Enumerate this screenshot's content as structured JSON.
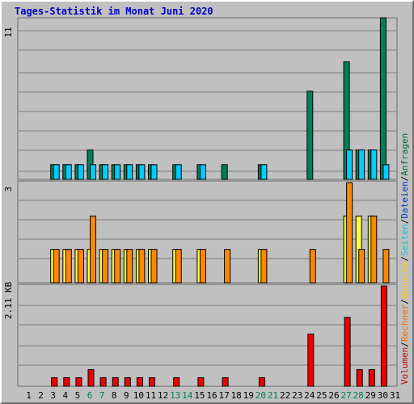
{
  "title": "Tages-Statistik im Monat Juni 2020",
  "legend": {
    "items": [
      {
        "label": "Anfragen",
        "color": "#006633"
      },
      {
        "label": "Dateien",
        "color": "#0033cc"
      },
      {
        "label": "Seiten",
        "color": "#00cccc"
      },
      {
        "label": "Besuche",
        "color": "#ffcc00"
      },
      {
        "label": "Rechner",
        "color": "#ff6600"
      },
      {
        "label": "Volumen",
        "color": "#cc0000"
      }
    ],
    "separator": "/"
  },
  "colors": {
    "hits": "#00805a",
    "files": "#00ccff",
    "visits": "#ffff33",
    "sites": "#ff8800",
    "kbytes": "#ee0000",
    "weekend_label": "#00805a",
    "background": "#c0c0c0",
    "grid": "#808080"
  },
  "chart_data": [
    {
      "type": "bar",
      "title": "Tages-Statistik im Monat Juni 2020",
      "ymax_label": "11",
      "ylim": [
        0,
        11
      ],
      "categories": [
        "1",
        "2",
        "3",
        "4",
        "5",
        "6",
        "7",
        "8",
        "9",
        "10",
        "11",
        "12",
        "13",
        "14",
        "15",
        "16",
        "17",
        "18",
        "19",
        "20",
        "21",
        "22",
        "23",
        "24",
        "25",
        "26",
        "27",
        "28",
        "29",
        "30",
        "31"
      ],
      "weekend_days": [
        "6",
        "7",
        "13",
        "14",
        "20",
        "21",
        "27",
        "28"
      ],
      "series": [
        {
          "name": "Anfragen",
          "values": [
            0,
            0,
            1,
            1,
            1,
            2,
            1,
            1,
            1,
            1,
            1,
            0,
            1,
            0,
            1,
            0,
            1,
            0,
            0,
            1,
            0,
            0,
            0,
            6,
            0,
            0,
            8,
            2,
            2,
            11,
            0
          ]
        },
        {
          "name": "Dateien",
          "values": [
            0,
            0,
            1,
            1,
            1,
            1,
            1,
            1,
            1,
            1,
            1,
            0,
            1,
            0,
            1,
            0,
            0,
            0,
            0,
            1,
            0,
            0,
            0,
            0,
            0,
            0,
            2,
            2,
            2,
            1,
            0
          ]
        }
      ]
    },
    {
      "type": "bar",
      "ymax_label": "3",
      "ylim": [
        0,
        3
      ],
      "categories": [
        "1",
        "2",
        "3",
        "4",
        "5",
        "6",
        "7",
        "8",
        "9",
        "10",
        "11",
        "12",
        "13",
        "14",
        "15",
        "16",
        "17",
        "18",
        "19",
        "20",
        "21",
        "22",
        "23",
        "24",
        "25",
        "26",
        "27",
        "28",
        "29",
        "30",
        "31"
      ],
      "series": [
        {
          "name": "Besuche",
          "values": [
            0,
            0,
            1,
            1,
            1,
            1,
            1,
            1,
            1,
            1,
            1,
            0,
            1,
            0,
            1,
            0,
            0,
            0,
            0,
            1,
            0,
            0,
            0,
            0,
            0,
            0,
            2,
            2,
            2,
            0,
            0
          ]
        },
        {
          "name": "Rechner",
          "values": [
            0,
            0,
            1,
            1,
            1,
            2,
            1,
            1,
            1,
            1,
            1,
            0,
            1,
            0,
            1,
            0,
            1,
            0,
            0,
            1,
            0,
            0,
            0,
            1,
            0,
            0,
            3,
            1,
            2,
            1,
            0
          ]
        }
      ]
    },
    {
      "type": "bar",
      "ymax_label": "2.11 KB",
      "ylim": [
        0,
        2.11
      ],
      "categories": [
        "1",
        "2",
        "3",
        "4",
        "5",
        "6",
        "7",
        "8",
        "9",
        "10",
        "11",
        "12",
        "13",
        "14",
        "15",
        "16",
        "17",
        "18",
        "19",
        "20",
        "21",
        "22",
        "23",
        "24",
        "25",
        "26",
        "27",
        "28",
        "29",
        "30",
        "31"
      ],
      "series": [
        {
          "name": "Volumen",
          "values": [
            0,
            0,
            0.18,
            0.18,
            0.18,
            0.35,
            0.18,
            0.18,
            0.18,
            0.18,
            0.18,
            0,
            0.18,
            0,
            0.18,
            0,
            0.18,
            0,
            0,
            0.18,
            0,
            0,
            0,
            1.1,
            0,
            0,
            1.45,
            0.35,
            0.35,
            2.11,
            0
          ]
        }
      ]
    }
  ]
}
